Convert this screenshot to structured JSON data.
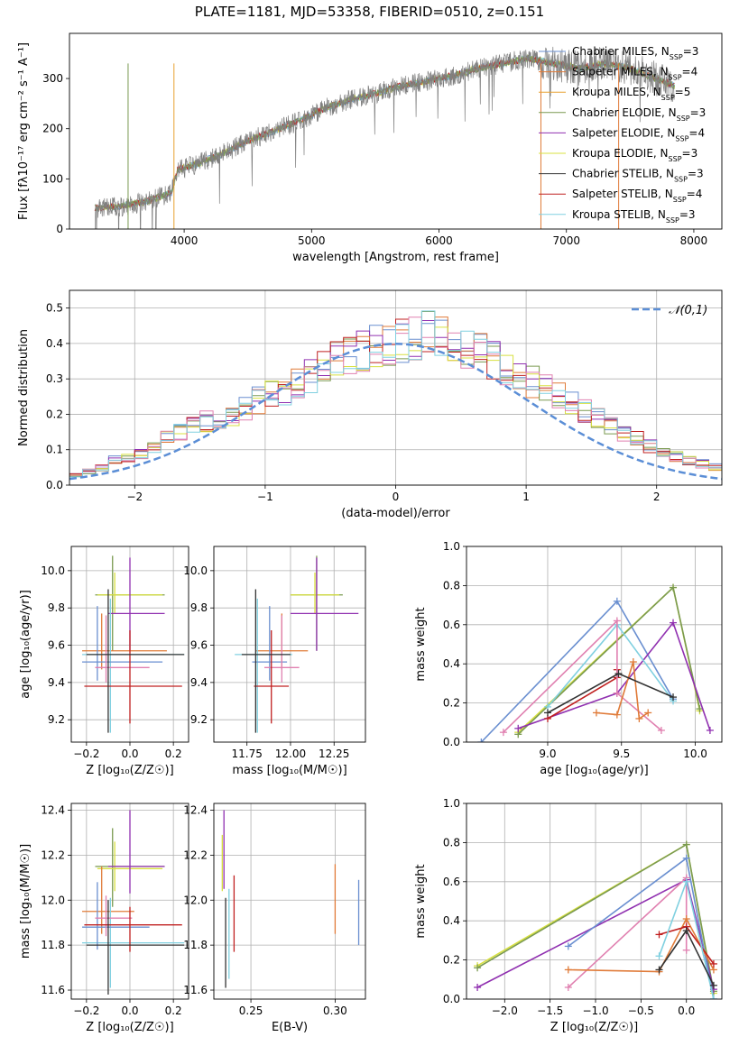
{
  "title": "PLATE=1181, MJD=53358, FIBERID=0510, z=0.151",
  "colors": {
    "chabrier_miles": "#6a8fd0",
    "salpeter_miles": "#e07b39",
    "kroupa_miles": "#e8a030",
    "chabrier_elodie": "#7a9a50",
    "salpeter_elodie": "#9030b0",
    "kroupa_elodie": "#d8e040",
    "chabrier_stelib": "#333333",
    "salpeter_stelib": "#c02020",
    "kroupa_stelib": "#80d0e0",
    "pink": "#e080b0",
    "normal_line": "#5b8ed6",
    "data": "#808080"
  },
  "chart_data": [
    {
      "id": "spectrum",
      "type": "line",
      "xlabel": "wavelength [Angstrom, rest frame]",
      "ylabel": "Flux [fλ10⁻¹⁷ erg cm⁻² s⁻¹ A⁻¹]",
      "xlim": [
        3100,
        8220
      ],
      "ylim": [
        0,
        390
      ],
      "xticks": [
        "4000",
        "5000",
        "6000",
        "7000",
        "8000"
      ],
      "yticks": [
        "0",
        "100",
        "200",
        "300"
      ],
      "grid": false,
      "legend_position": "right",
      "legend": [
        "Chabrier MILES, N_SSP=3",
        "Salpeter MILES, N_SSP=4",
        "Kroupa MILES, N_SSP=5",
        "Chabrier ELODIE, N_SSP=3",
        "Salpeter ELODIE, N_SSP=4",
        "Kroupa ELODIE, N_SSP=3",
        "Chabrier STELIB, N_SSP=3",
        "Salpeter STELIB, N_SSP=4",
        "Kroupa STELIB, N_SSP=3"
      ],
      "continuum": {
        "x": [
          3300,
          3500,
          3700,
          3900,
          3950,
          4100,
          4300,
          4500,
          4700,
          4900,
          5100,
          5300,
          5500,
          5700,
          5900,
          6100,
          6300,
          6500,
          6700,
          6900,
          7100,
          7300,
          7500,
          7700,
          7850
        ],
        "y": [
          42,
          45,
          55,
          72,
          118,
          130,
          150,
          175,
          195,
          215,
          240,
          258,
          270,
          285,
          295,
          305,
          320,
          330,
          340,
          330,
          320,
          330,
          320,
          300,
          285
        ]
      }
    },
    {
      "id": "residuals",
      "type": "histogram",
      "xlabel": "(data-model)/error",
      "ylabel": "Normed distribution",
      "xlim": [
        -2.5,
        2.5
      ],
      "ylim": [
        0,
        0.55
      ],
      "xticks": [
        "−2",
        "−1",
        "0",
        "1",
        "2"
      ],
      "yticks": [
        "0.0",
        "0.1",
        "0.2",
        "0.3",
        "0.4",
        "0.5"
      ],
      "grid": true,
      "legend_position": "top-right",
      "legend": [
        "𝒩(0,1)"
      ],
      "bin_width": 0.1,
      "base_profile": [
        0.03,
        0.03,
        0.035,
        0.04,
        0.045,
        0.05,
        0.06,
        0.07,
        0.09,
        0.1,
        0.11,
        0.13,
        0.15,
        0.17,
        0.19,
        0.2,
        0.21,
        0.22,
        0.24,
        0.26,
        0.28,
        0.29,
        0.31,
        0.33,
        0.35,
        0.37,
        0.39,
        0.4,
        0.41,
        0.42,
        0.43,
        0.44,
        0.45,
        0.44,
        0.43,
        0.41,
        0.39,
        0.37,
        0.35,
        0.33,
        0.31,
        0.29,
        0.27,
        0.25,
        0.23,
        0.21,
        0.19,
        0.17,
        0.15,
        0.13,
        0.11,
        0.1,
        0.09,
        0.08,
        0.07,
        0.06,
        0.05,
        0.045,
        0.04,
        0.035,
        0.03
      ]
    },
    {
      "id": "age_vs_Z",
      "type": "errorbar",
      "xlabel": "Z [log₁₀(Z/Z☉)]",
      "ylabel": "age  [log₁₀(age/yr)]",
      "xlim": [
        -0.27,
        0.27
      ],
      "ylim": [
        9.08,
        10.13
      ],
      "xticks": [
        "−0.2",
        "0.0",
        "0.2"
      ],
      "yticks": [
        "9.2",
        "9.4",
        "9.6",
        "9.8",
        "10.0"
      ],
      "grid": true,
      "points": [
        {
          "x": -0.08,
          "y": 9.87,
          "xerr": [
            0.08,
            0.24
          ],
          "yerr": [
            0.3,
            0.21
          ],
          "c": "chabrier_elodie"
        },
        {
          "x": -0.07,
          "y": 9.87,
          "xerr": [
            0.08,
            0.22
          ],
          "yerr": [
            0.1,
            0.12
          ],
          "c": "kroupa_elodie"
        },
        {
          "x": 0.0,
          "y": 9.77,
          "xerr": [
            0.1,
            0.16
          ],
          "yerr": [
            0.2,
            0.3
          ],
          "c": "salpeter_elodie"
        },
        {
          "x": -0.13,
          "y": 9.57,
          "xerr": [
            0.09,
            0.3
          ],
          "yerr": [
            0.1,
            0.2
          ],
          "c": "salpeter_miles"
        },
        {
          "x": -0.09,
          "y": 9.55,
          "xerr": [
            0.13,
            0.34
          ],
          "yerr": [
            0.42,
            0.3
          ],
          "c": "kroupa_stelib"
        },
        {
          "x": -0.15,
          "y": 9.51,
          "xerr": [
            0.07,
            0.3
          ],
          "yerr": [
            0.1,
            0.3
          ],
          "c": "chabrier_miles"
        },
        {
          "x": -0.11,
          "y": 9.48,
          "xerr": [
            0.05,
            0.2
          ],
          "yerr": [
            0.08,
            0.28
          ],
          "c": "pink"
        },
        {
          "x": 0.0,
          "y": 9.38,
          "xerr": [
            0.21,
            0.24
          ],
          "yerr": [
            0.2,
            0.3
          ],
          "c": "salpeter_stelib"
        },
        {
          "x": -0.1,
          "y": 9.55,
          "xerr": [
            0.1,
            0.35
          ],
          "yerr": [
            0.42,
            0.35
          ],
          "c": "chabrier_stelib"
        }
      ]
    },
    {
      "id": "age_vs_mass",
      "type": "errorbar",
      "xlabel": "mass [log₁₀(M/M☉)]",
      "ylabel": "",
      "xlim": [
        11.56,
        12.43
      ],
      "ylim": [
        9.08,
        10.13
      ],
      "xticks": [
        "11.75",
        "12.00",
        "12.25"
      ],
      "yticks": [
        "9.2",
        "9.4",
        "9.6",
        "9.8",
        "10.0"
      ],
      "grid": true,
      "points": [
        {
          "x": 12.15,
          "y": 9.87,
          "xerr": [
            0.15,
            0.15
          ],
          "yerr": [
            0.3,
            0.21
          ],
          "c": "chabrier_elodie"
        },
        {
          "x": 12.14,
          "y": 9.87,
          "xerr": [
            0.14,
            0.14
          ],
          "yerr": [
            0.1,
            0.12
          ],
          "c": "kroupa_elodie"
        },
        {
          "x": 12.15,
          "y": 9.77,
          "xerr": [
            0.15,
            0.24
          ],
          "yerr": [
            0.2,
            0.3
          ],
          "c": "salpeter_elodie"
        },
        {
          "x": 11.95,
          "y": 9.57,
          "xerr": [
            0.15,
            0.15
          ],
          "yerr": [
            0.1,
            0.2
          ],
          "c": "salpeter_miles"
        },
        {
          "x": 11.81,
          "y": 9.55,
          "xerr": [
            0.13,
            0.2
          ],
          "yerr": [
            0.42,
            0.3
          ],
          "c": "kroupa_stelib"
        },
        {
          "x": 11.88,
          "y": 9.51,
          "xerr": [
            0.1,
            0.1
          ],
          "yerr": [
            0.1,
            0.3
          ],
          "c": "chabrier_miles"
        },
        {
          "x": 11.95,
          "y": 9.48,
          "xerr": [
            0.1,
            0.1
          ],
          "yerr": [
            0.08,
            0.28
          ],
          "c": "pink"
        },
        {
          "x": 11.89,
          "y": 9.38,
          "xerr": [
            0.1,
            0.1
          ],
          "yerr": [
            0.2,
            0.3
          ],
          "c": "salpeter_stelib"
        },
        {
          "x": 11.8,
          "y": 9.55,
          "xerr": [
            0.08,
            0.2
          ],
          "yerr": [
            0.42,
            0.35
          ],
          "c": "chabrier_stelib"
        }
      ]
    },
    {
      "id": "mass_weight_vs_age",
      "type": "line",
      "xlabel": "age  [log₁₀(age/yr)]",
      "ylabel": "mass weight",
      "xlim": [
        8.45,
        10.18
      ],
      "ylim": [
        0.0,
        1.0
      ],
      "xticks": [
        "9.0",
        "9.5",
        "10.0"
      ],
      "yticks": [
        "0.0",
        "0.2",
        "0.4",
        "0.6",
        "0.8",
        "1.0"
      ],
      "grid": true,
      "series": [
        {
          "c": "chabrier_miles",
          "x": [
            8.55,
            9.47,
            9.85
          ],
          "y": [
            0.0,
            0.72,
            0.22
          ]
        },
        {
          "c": "kroupa_elodie",
          "x": [
            8.8,
            9.85,
            10.03
          ],
          "y": [
            0.05,
            0.79,
            0.16
          ]
        },
        {
          "c": "chabrier_elodie",
          "x": [
            8.8,
            9.85,
            10.03
          ],
          "y": [
            0.04,
            0.79,
            0.17
          ]
        },
        {
          "c": "salpeter_elodie",
          "x": [
            8.8,
            9.47,
            9.85,
            10.1
          ],
          "y": [
            0.07,
            0.25,
            0.61,
            0.06
          ]
        },
        {
          "c": "kroupa_stelib",
          "x": [
            9.0,
            9.47,
            9.85
          ],
          "y": [
            0.18,
            0.6,
            0.21
          ]
        },
        {
          "c": "salpeter_stelib",
          "x": [
            9.0,
            9.47,
            9.47
          ],
          "y": [
            0.12,
            0.33,
            0.37
          ]
        },
        {
          "c": "pink",
          "x": [
            8.7,
            9.47,
            9.47,
            9.77
          ],
          "y": [
            0.05,
            0.62,
            0.25,
            0.06
          ]
        },
        {
          "c": "salpeter_miles",
          "x": [
            9.33,
            9.47,
            9.58,
            9.62,
            9.68
          ],
          "y": [
            0.15,
            0.14,
            0.41,
            0.12,
            0.15
          ]
        },
        {
          "c": "chabrier_stelib",
          "x": [
            9.0,
            9.48,
            9.85
          ],
          "y": [
            0.15,
            0.35,
            0.23
          ]
        }
      ]
    },
    {
      "id": "mass_vs_Z",
      "type": "errorbar",
      "xlabel": "Z [log₁₀(Z/Z☉)]",
      "ylabel": "mass [log₁₀(M/M☉)]",
      "xlim": [
        -0.27,
        0.27
      ],
      "ylim": [
        11.56,
        12.43
      ],
      "xticks": [
        "−0.2",
        "0.0",
        "0.2"
      ],
      "yticks": [
        "11.6",
        "11.8",
        "12.0",
        "12.2",
        "12.4"
      ],
      "grid": true,
      "points": [
        {
          "x": -0.08,
          "y": 12.15,
          "xerr": [
            0.08,
            0.24
          ],
          "yerr": [
            0.18,
            0.17
          ],
          "c": "chabrier_elodie"
        },
        {
          "x": -0.07,
          "y": 12.14,
          "xerr": [
            0.08,
            0.22
          ],
          "yerr": [
            0.1,
            0.12
          ],
          "c": "kroupa_elodie"
        },
        {
          "x": 0.0,
          "y": 12.15,
          "xerr": [
            0.1,
            0.16
          ],
          "yerr": [
            0.12,
            0.25
          ],
          "c": "salpeter_elodie"
        },
        {
          "x": -0.13,
          "y": 11.95,
          "xerr": [
            0.09,
            0.15
          ],
          "yerr": [
            0.1,
            0.2
          ],
          "c": "salpeter_miles"
        },
        {
          "x": -0.09,
          "y": 11.81,
          "xerr": [
            0.13,
            0.34
          ],
          "yerr": [
            0.2,
            0.2
          ],
          "c": "kroupa_stelib"
        },
        {
          "x": -0.15,
          "y": 11.88,
          "xerr": [
            0.07,
            0.24
          ],
          "yerr": [
            0.1,
            0.2
          ],
          "c": "chabrier_miles"
        },
        {
          "x": -0.11,
          "y": 11.92,
          "xerr": [
            0.05,
            0.12
          ],
          "yerr": [
            0.08,
            0.1
          ],
          "c": "pink"
        },
        {
          "x": 0.0,
          "y": 11.89,
          "xerr": [
            0.21,
            0.24
          ],
          "yerr": [
            0.12,
            0.08
          ],
          "c": "salpeter_stelib"
        },
        {
          "x": -0.1,
          "y": 11.8,
          "xerr": [
            0.1,
            0.35
          ],
          "yerr": [
            0.22,
            0.2
          ],
          "c": "chabrier_stelib"
        }
      ]
    },
    {
      "id": "mass_vs_ebv",
      "type": "errorbar",
      "xlabel": "E(B-V)",
      "ylabel": "",
      "xlim": [
        0.228,
        0.318
      ],
      "ylim": [
        11.56,
        12.43
      ],
      "xticks": [
        "0.25",
        "0.30"
      ],
      "yticks": [
        "11.6",
        "11.8",
        "12.0",
        "12.2",
        "12.4"
      ],
      "grid": true,
      "points": [
        {
          "x": 0.234,
          "y": 12.15,
          "xerr": [
            0,
            0
          ],
          "yerr": [
            0.1,
            0.25
          ],
          "c": "salpeter_elodie"
        },
        {
          "x": 0.233,
          "y": 12.14,
          "xerr": [
            0,
            0
          ],
          "yerr": [
            0.1,
            0.15
          ],
          "c": "kroupa_elodie"
        },
        {
          "x": 0.235,
          "y": 11.81,
          "xerr": [
            0,
            0
          ],
          "yerr": [
            0.2,
            0.2
          ],
          "c": "chabrier_stelib"
        },
        {
          "x": 0.237,
          "y": 11.85,
          "xerr": [
            0,
            0
          ],
          "yerr": [
            0.2,
            0.2
          ],
          "c": "kroupa_stelib"
        },
        {
          "x": 0.24,
          "y": 11.95,
          "xerr": [
            0,
            0
          ],
          "yerr": [
            0.18,
            0.16
          ],
          "c": "salpeter_stelib"
        },
        {
          "x": 0.3,
          "y": 12.0,
          "xerr": [
            0,
            0
          ],
          "yerr": [
            0.15,
            0.16
          ],
          "c": "salpeter_miles"
        },
        {
          "x": 0.314,
          "y": 11.95,
          "xerr": [
            0,
            0
          ],
          "yerr": [
            0.15,
            0.14
          ],
          "c": "chabrier_miles"
        }
      ]
    },
    {
      "id": "mass_weight_vs_Z",
      "type": "line",
      "xlabel": "Z [log₁₀(Z/Z☉)]",
      "ylabel": "mass weight",
      "xlim": [
        -2.42,
        0.39
      ],
      "ylim": [
        0.0,
        1.0
      ],
      "xticks": [
        "−2.0",
        "−1.5",
        "−1.0",
        "−0.5",
        "0.0"
      ],
      "yticks": [
        "0.0",
        "0.2",
        "0.4",
        "0.6",
        "0.8",
        "1.0"
      ],
      "grid": true,
      "series": [
        {
          "c": "kroupa_elodie",
          "x": [
            -2.3,
            0.0,
            0.3
          ],
          "y": [
            0.17,
            0.79,
            0.03
          ]
        },
        {
          "c": "chabrier_elodie",
          "x": [
            -2.3,
            0.0,
            0.3
          ],
          "y": [
            0.16,
            0.79,
            0.04
          ]
        },
        {
          "c": "salpeter_elodie",
          "x": [
            -2.3,
            0.0,
            0.3
          ],
          "y": [
            0.06,
            0.61,
            0.05
          ]
        },
        {
          "c": "chabrier_miles",
          "x": [
            -1.3,
            0.0,
            0.3
          ],
          "y": [
            0.27,
            0.72,
            0.0
          ]
        },
        {
          "c": "pink",
          "x": [
            -1.3,
            0.0,
            0.0
          ],
          "y": [
            0.06,
            0.62,
            0.25
          ]
        },
        {
          "c": "salpeter_miles",
          "x": [
            -1.3,
            -0.3,
            0.0,
            0.3
          ],
          "y": [
            0.15,
            0.14,
            0.41,
            0.15
          ]
        },
        {
          "c": "salpeter_stelib",
          "x": [
            -0.3,
            0.0,
            0.3
          ],
          "y": [
            0.33,
            0.37,
            0.18
          ]
        },
        {
          "c": "kroupa_stelib",
          "x": [
            -0.3,
            0.0,
            0.3
          ],
          "y": [
            0.22,
            0.6,
            0.0
          ]
        },
        {
          "c": "chabrier_stelib",
          "x": [
            -0.3,
            0.0,
            0.3
          ],
          "y": [
            0.15,
            0.35,
            0.07
          ]
        }
      ]
    }
  ]
}
